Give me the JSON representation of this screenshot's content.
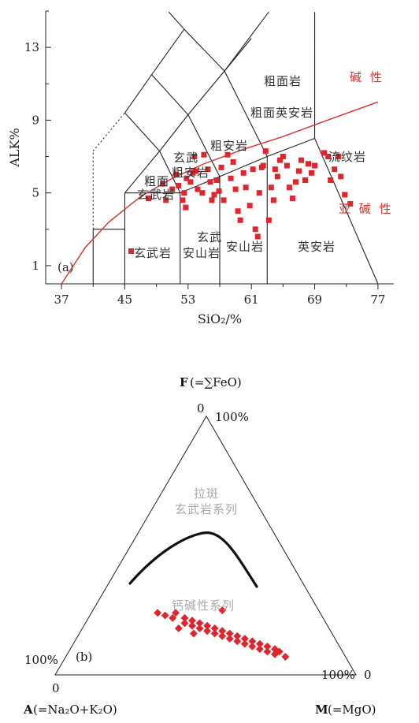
{
  "chart_data": [
    {
      "type": "scatter",
      "panel_label": "(a)",
      "xlabel": "SiO₂/%",
      "ylabel": "ALK%",
      "xlim": [
        35,
        79
      ],
      "ylim": [
        0,
        15
      ],
      "x_ticks": [
        "37",
        "45",
        "53",
        "61",
        "69",
        "77"
      ],
      "y_ticks": [
        "1",
        "5",
        "9",
        "13"
      ],
      "field_labels": [
        "粗面岩",
        "粗面英安岩",
        "粗安岩",
        "流纹岩",
        "玄武",
        "粗安岩",
        "粗面",
        "玄武岩",
        "玄武",
        "安山岩",
        "英安岩",
        "玄武岩",
        "安山岩"
      ],
      "series_labels": [
        "碱 性",
        "亚 碱 性"
      ],
      "points": [
        [
          45.8,
          1.8
        ],
        [
          48.0,
          4.7
        ],
        [
          49.8,
          5.5
        ],
        [
          50.2,
          4.6
        ],
        [
          51.0,
          5.2
        ],
        [
          51.5,
          6.0
        ],
        [
          51.8,
          5.4
        ],
        [
          52.3,
          4.6
        ],
        [
          52.7,
          4.2
        ],
        [
          52.5,
          5.0
        ],
        [
          52.8,
          5.8
        ],
        [
          53.3,
          5.6
        ],
        [
          53.6,
          6.1
        ],
        [
          53.8,
          7.0
        ],
        [
          54.0,
          6.2
        ],
        [
          54.2,
          5.2
        ],
        [
          54.8,
          5.0
        ],
        [
          55.0,
          7.1
        ],
        [
          55.5,
          6.3
        ],
        [
          55.8,
          5.6
        ],
        [
          56.0,
          4.6
        ],
        [
          56.3,
          4.9
        ],
        [
          56.6,
          5.7
        ],
        [
          56.9,
          5.1
        ],
        [
          57.2,
          6.4
        ],
        [
          57.5,
          4.6
        ],
        [
          58.0,
          7.1
        ],
        [
          58.4,
          5.8
        ],
        [
          58.7,
          6.7
        ],
        [
          59.0,
          5.2
        ],
        [
          59.3,
          4.0
        ],
        [
          59.6,
          3.5
        ],
        [
          60.0,
          6.1
        ],
        [
          60.3,
          5.3
        ],
        [
          60.8,
          4.3
        ],
        [
          61.2,
          6.3
        ],
        [
          61.5,
          3.0
        ],
        [
          61.8,
          2.6
        ],
        [
          62.0,
          5.0
        ],
        [
          62.3,
          6.4
        ],
        [
          62.5,
          6.5
        ],
        [
          62.8,
          7.3
        ],
        [
          63.2,
          3.5
        ],
        [
          63.5,
          5.3
        ],
        [
          63.8,
          4.6
        ],
        [
          64.0,
          6.3
        ],
        [
          64.3,
          5.9
        ],
        [
          64.6,
          6.8
        ],
        [
          65.0,
          7.0
        ],
        [
          65.5,
          6.5
        ],
        [
          65.8,
          5.3
        ],
        [
          66.2,
          4.7
        ],
        [
          66.6,
          5.6
        ],
        [
          67.0,
          6.2
        ],
        [
          67.3,
          6.8
        ],
        [
          67.8,
          5.7
        ],
        [
          68.2,
          6.6
        ],
        [
          68.6,
          6.1
        ],
        [
          69.0,
          6.5
        ],
        [
          70.2,
          7.2
        ],
        [
          70.7,
          7.0
        ],
        [
          71.0,
          5.7
        ],
        [
          71.5,
          6.3
        ],
        [
          72.0,
          7.0
        ],
        [
          72.3,
          5.9
        ],
        [
          72.8,
          4.9
        ],
        [
          73.5,
          4.4
        ]
      ],
      "alkaline_curve": [
        [
          37,
          0
        ],
        [
          40,
          2
        ],
        [
          43,
          3.4
        ],
        [
          47,
          4.8
        ],
        [
          51,
          5.8
        ],
        [
          55,
          6.6
        ],
        [
          60,
          7.4
        ],
        [
          65,
          8.1
        ],
        [
          70,
          8.9
        ],
        [
          77,
          10.0
        ]
      ]
    },
    {
      "type": "scatter",
      "panel_label": "(b)",
      "apex_label_F": "(=∑FeO)",
      "apex_label_A": "(=Na₂O+K₂O)",
      "apex_label_M": "(=MgO)",
      "F_letter": "F",
      "A_letter": "A",
      "M_letter": "M",
      "zero_top": "0",
      "hundred_top": "100%",
      "zero_left": "0",
      "hundred_left": "100%",
      "zero_right": "0",
      "hundred_right": "100%",
      "tholeiite_label_1": "拉斑",
      "tholeiite_label_2": "玄武岩系列",
      "calcalkaline_label": "钙碱性系列",
      "points_AFM": [
        [
          0.54,
          0.24,
          0.22
        ],
        [
          0.52,
          0.23,
          0.25
        ],
        [
          0.5,
          0.22,
          0.28
        ],
        [
          0.48,
          0.24,
          0.28
        ],
        [
          0.47,
          0.2,
          0.33
        ],
        [
          0.46,
          0.22,
          0.32
        ],
        [
          0.45,
          0.19,
          0.36
        ],
        [
          0.44,
          0.21,
          0.35
        ],
        [
          0.43,
          0.18,
          0.39
        ],
        [
          0.42,
          0.2,
          0.38
        ],
        [
          0.41,
          0.17,
          0.42
        ],
        [
          0.4,
          0.19,
          0.41
        ],
        [
          0.39,
          0.16,
          0.45
        ],
        [
          0.38,
          0.18,
          0.44
        ],
        [
          0.37,
          0.15,
          0.48
        ],
        [
          0.36,
          0.17,
          0.47
        ],
        [
          0.35,
          0.14,
          0.51
        ],
        [
          0.34,
          0.16,
          0.5
        ],
        [
          0.33,
          0.13,
          0.54
        ],
        [
          0.32,
          0.15,
          0.53
        ],
        [
          0.31,
          0.12,
          0.57
        ],
        [
          0.3,
          0.14,
          0.56
        ],
        [
          0.29,
          0.11,
          0.6
        ],
        [
          0.28,
          0.13,
          0.59
        ],
        [
          0.27,
          0.1,
          0.63
        ],
        [
          0.26,
          0.12,
          0.62
        ],
        [
          0.25,
          0.09,
          0.66
        ],
        [
          0.24,
          0.11,
          0.65
        ],
        [
          0.23,
          0.08,
          0.69
        ],
        [
          0.22,
          0.1,
          0.68
        ],
        [
          0.21,
          0.09,
          0.7
        ],
        [
          0.2,
          0.07,
          0.73
        ],
        [
          0.32,
          0.25,
          0.43
        ],
        [
          0.46,
          0.16,
          0.38
        ],
        [
          0.5,
          0.18,
          0.32
        ]
      ]
    }
  ]
}
